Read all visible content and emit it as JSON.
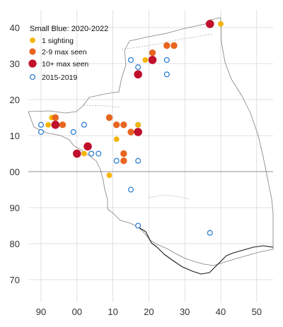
{
  "chart_data": {
    "type": "scatter",
    "title": "",
    "xlabel": "",
    "ylabel": "",
    "x_ticks": [
      "90",
      "00",
      "10",
      "20",
      "30",
      "40",
      "50"
    ],
    "y_ticks": [
      "70",
      "80",
      "90",
      "00",
      "10",
      "20",
      "30",
      "40"
    ],
    "grid": true,
    "legend": {
      "placement": "top-left",
      "title": "Small Blue:  2020-2022",
      "entries": [
        {
          "key": "one",
          "label": "1 sighting"
        },
        {
          "key": "few",
          "label": "2-9 max seen"
        },
        {
          "key": "many",
          "label": "10+ max seen"
        },
        {
          "key": "old",
          "label": "2015-2019"
        }
      ]
    },
    "colors": {
      "one": "#f5b400",
      "few": "#e8651f",
      "many": "#c0102c",
      "old": "#2f7fd0",
      "grid": "#d9d9d9",
      "axis": "#a6a6a6",
      "boundary": "#7f7f7f",
      "river": "#1a1a1a"
    },
    "series": [
      {
        "key": "old",
        "points": [
          [
            90,
            13
          ],
          [
            90,
            11
          ],
          [
            99,
            11
          ],
          [
            2,
            13
          ],
          [
            4,
            5
          ],
          [
            6,
            5
          ],
          [
            11,
            3
          ],
          [
            17,
            3
          ],
          [
            17,
            13
          ],
          [
            15,
            31
          ],
          [
            17,
            29
          ],
          [
            25,
            27
          ],
          [
            25,
            31
          ],
          [
            15,
            -5
          ],
          [
            17,
            -15
          ],
          [
            37,
            -17
          ]
        ]
      },
      {
        "key": "one",
        "points": [
          [
            40,
            41
          ],
          [
            19,
            31
          ],
          [
            17,
            13
          ],
          [
            11,
            9
          ],
          [
            9,
            -1
          ],
          [
            2,
            5
          ],
          [
            93,
            15
          ],
          [
            92,
            13
          ]
        ]
      },
      {
        "key": "few",
        "points": [
          [
            94,
            15
          ],
          [
            96,
            13
          ],
          [
            9,
            15
          ],
          [
            11,
            13
          ],
          [
            13,
            13
          ],
          [
            15,
            11
          ],
          [
            13,
            5
          ],
          [
            13,
            3
          ],
          [
            21,
            33
          ],
          [
            25,
            35
          ],
          [
            27,
            35
          ]
        ]
      },
      {
        "key": "many",
        "points": [
          [
            37,
            41
          ],
          [
            21,
            31
          ],
          [
            17,
            27
          ],
          [
            94,
            13
          ],
          [
            3,
            7
          ],
          [
            0,
            5
          ],
          [
            17,
            11
          ]
        ]
      }
    ]
  }
}
